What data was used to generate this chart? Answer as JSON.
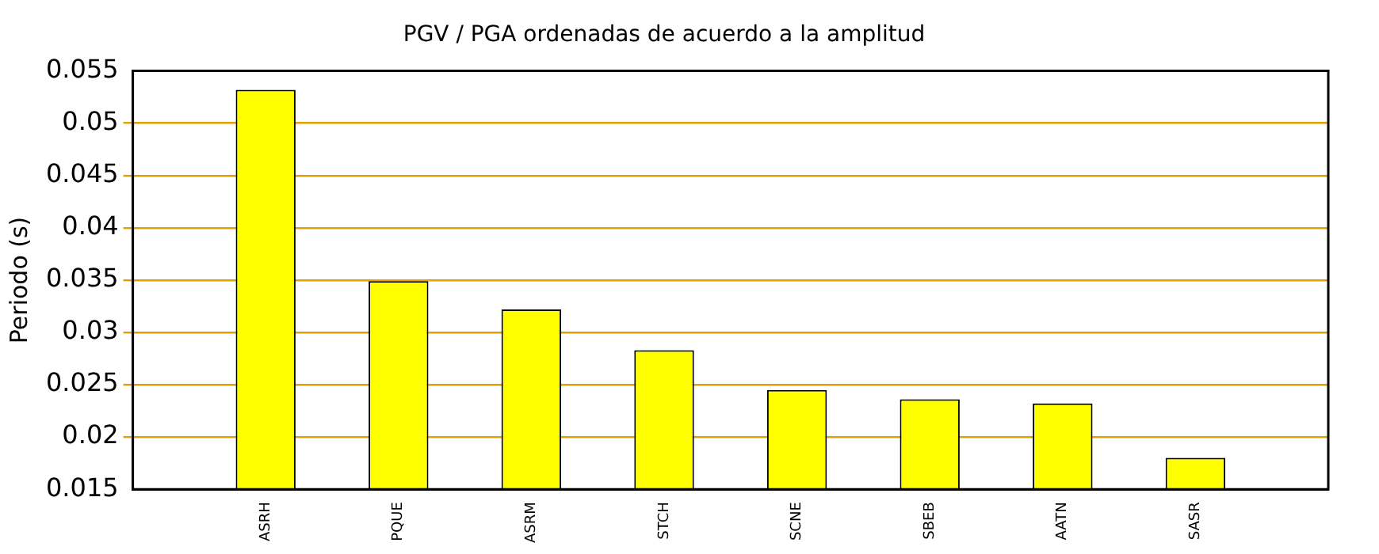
{
  "chart_data": {
    "type": "bar",
    "title": "PGV / PGA ordenadas de acuerdo a la amplitud",
    "ylabel": "Periodo (s)",
    "categories": [
      "ASRH",
      "PQUE",
      "ASRM",
      "STCH",
      "SCNE",
      "SBEB",
      "AATN",
      "SASR"
    ],
    "values": [
      0.0532,
      0.0349,
      0.0322,
      0.0283,
      0.0245,
      0.0236,
      0.0232,
      0.018
    ],
    "color": "#ffff00",
    "ylim": [
      0.015,
      0.055
    ],
    "yticks": [
      0.015,
      0.02,
      0.025,
      0.03,
      0.035,
      0.04,
      0.045,
      0.05,
      0.055
    ],
    "grid": "y",
    "legend": false
  }
}
